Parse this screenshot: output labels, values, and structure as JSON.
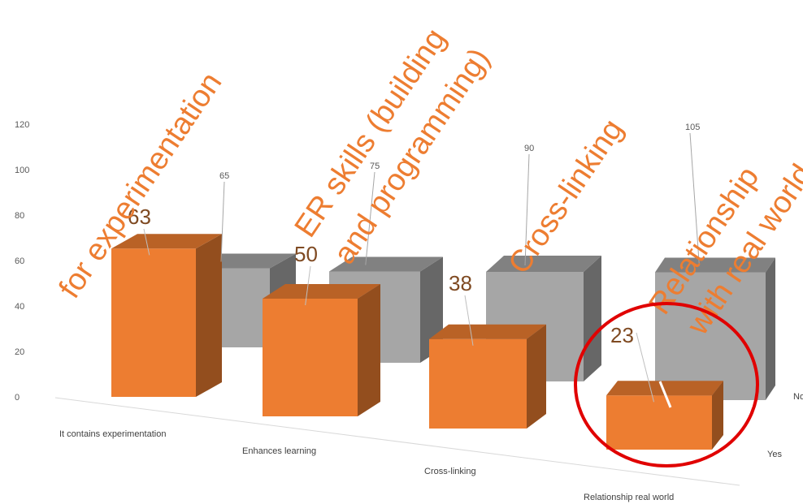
{
  "chart_data": {
    "type": "bar",
    "subtype": "3d-column",
    "categories": [
      "It contains experimentation",
      "Enhances learning",
      "Cross-linking",
      "Relationship real world"
    ],
    "series": [
      {
        "name": "Yes",
        "values": [
          63,
          50,
          38,
          23
        ],
        "color": "#ed7d31"
      },
      {
        "name": "No",
        "values": [
          65,
          75,
          90,
          105
        ],
        "color": "#a6a6a6"
      }
    ],
    "y_ticks": [
      0,
      20,
      40,
      60,
      80,
      100,
      120
    ],
    "ylim": [
      0,
      120
    ],
    "grid": false,
    "legend": "none",
    "annotations": [
      {
        "text": "for experimentation",
        "color": "#ed7d31"
      },
      {
        "text": "ER skills (building",
        "color": "#ed7d31"
      },
      {
        "text": "and programming)",
        "color": "#ed7d31"
      },
      {
        "text": "Cross-linking",
        "color": "#ed7d31"
      },
      {
        "text": "Relationship",
        "color": "#ed7d31"
      },
      {
        "text": "with real world",
        "color": "#ed7d31"
      }
    ],
    "highlight": {
      "category": "Relationship real world",
      "shape": "circle",
      "color": "#e00000"
    }
  }
}
